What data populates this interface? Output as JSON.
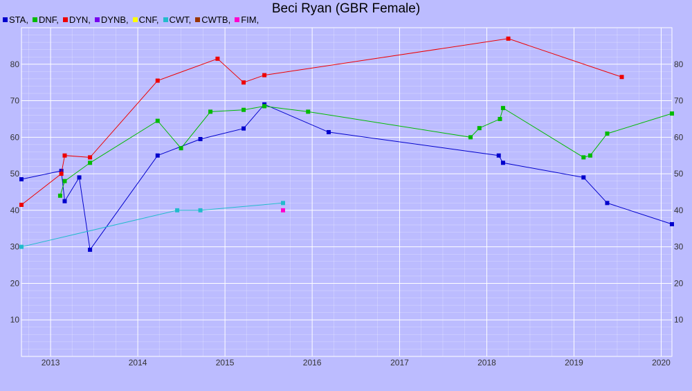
{
  "colors": {
    "background": "#bcbcff",
    "grid": "#ffffff"
  },
  "chart_data": {
    "type": "line",
    "title": "Beci Ryan (GBR Female)",
    "xlabel": "",
    "ylabel": "",
    "xlim": [
      "2012-09-01",
      "2020-02-15"
    ],
    "ylim": [
      0,
      90
    ],
    "x_ticks": [
      "2013",
      "2014",
      "2015",
      "2016",
      "2017",
      "2018",
      "2019",
      "2020"
    ],
    "y_ticks": [
      10,
      20,
      30,
      40,
      50,
      60,
      70,
      80
    ],
    "grid": true,
    "legend_position": "top-left",
    "legend": [
      {
        "label": "STA,",
        "color": "#0000cc"
      },
      {
        "label": "DNF,",
        "color": "#00bb00"
      },
      {
        "label": "DYN,",
        "color": "#ee0000"
      },
      {
        "label": "DYNB,",
        "color": "#7700ee"
      },
      {
        "label": "CNF,",
        "color": "#ffff00"
      },
      {
        "label": "CWT,",
        "color": "#22bbcc"
      },
      {
        "label": "CWTB,",
        "color": "#993300"
      },
      {
        "label": "FIM,",
        "color": "#ff00cc"
      }
    ],
    "series": [
      {
        "name": "STA",
        "color": "#0000cc",
        "points": [
          [
            "2012-09-01",
            48.5
          ],
          [
            "2013-02-15",
            50.8
          ],
          [
            "2013-03-01",
            42.5
          ],
          [
            "2013-05-01",
            49
          ],
          [
            "2013-06-15",
            29.2
          ],
          [
            "2014-03-25",
            55
          ],
          [
            "2014-09-20",
            59.5
          ],
          [
            "2015-03-20",
            62.4
          ],
          [
            "2015-06-15",
            69
          ],
          [
            "2016-03-10",
            61.4
          ],
          [
            "2018-02-20",
            55
          ],
          [
            "2018-03-10",
            53
          ],
          [
            "2019-02-10",
            49
          ],
          [
            "2019-05-20",
            42
          ],
          [
            "2020-02-15",
            36.2
          ]
        ]
      },
      {
        "name": "DNF",
        "color": "#00bb00",
        "points": [
          [
            "2013-02-10",
            44
          ],
          [
            "2013-03-01",
            48
          ],
          [
            "2013-06-15",
            53
          ],
          [
            "2014-03-25",
            64.5
          ],
          [
            "2014-07-01",
            57
          ],
          [
            "2014-11-01",
            67
          ],
          [
            "2015-03-20",
            67.5
          ],
          [
            "2015-06-15",
            68.5
          ],
          [
            "2015-12-15",
            67
          ],
          [
            "2017-10-25",
            60
          ],
          [
            "2017-12-01",
            62.5
          ],
          [
            "2018-02-25",
            65
          ],
          [
            "2018-03-10",
            68
          ],
          [
            "2019-02-10",
            54.5
          ],
          [
            "2019-03-10",
            55
          ],
          [
            "2019-05-20",
            61
          ],
          [
            "2020-02-15",
            66.5
          ]
        ]
      },
      {
        "name": "DYN",
        "color": "#ee0000",
        "points": [
          [
            "2012-09-01",
            41.5
          ],
          [
            "2013-02-15",
            50
          ],
          [
            "2013-03-01",
            55
          ],
          [
            "2013-06-15",
            54.5
          ],
          [
            "2014-03-25",
            75.5
          ],
          [
            "2014-12-01",
            81.5
          ],
          [
            "2015-03-20",
            75
          ],
          [
            "2015-06-15",
            77
          ],
          [
            "2018-04-01",
            87
          ],
          [
            "2019-07-20",
            76.5
          ]
        ]
      },
      {
        "name": "CWT",
        "color": "#22bbcc",
        "points": [
          [
            "2012-09-01",
            30
          ],
          [
            "2014-06-15",
            40
          ],
          [
            "2014-09-20",
            40
          ],
          [
            "2015-09-01",
            42
          ]
        ]
      },
      {
        "name": "FIM",
        "color": "#ff00cc",
        "points": [
          [
            "2015-09-01",
            40
          ]
        ]
      }
    ]
  }
}
